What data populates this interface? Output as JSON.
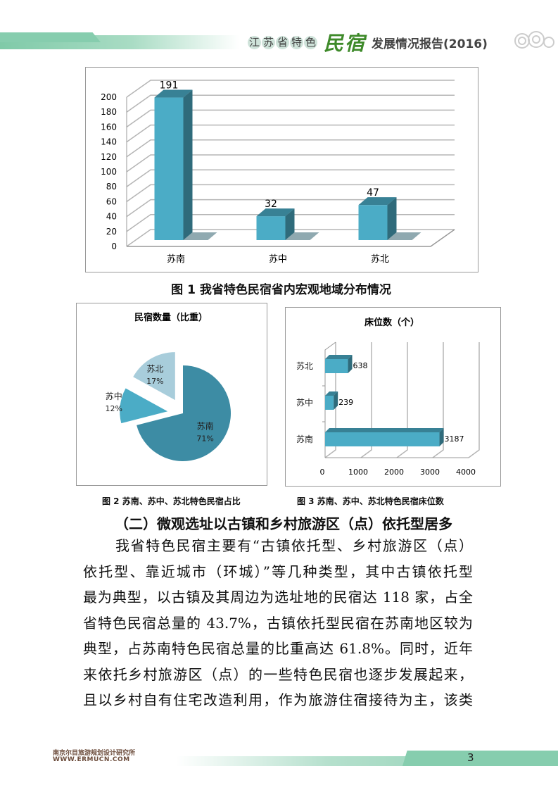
{
  "header": {
    "title_circled": [
      "江",
      "苏",
      "省",
      "特",
      "色"
    ],
    "title_script": "民宿",
    "title_rest": "发展情况报告(2016)"
  },
  "figure1": {
    "caption": "图 1 我省特色民宿省内宏观地域分布情况"
  },
  "figure2": {
    "caption": "图 2 苏南、苏中、苏北特色民宿占比"
  },
  "figure3": {
    "caption": "图 3 苏南、苏中、苏北特色民宿床位数"
  },
  "chart_data": [
    {
      "type": "bar",
      "style": "3d-column",
      "title": "",
      "categories": [
        "苏南",
        "苏中",
        "苏北"
      ],
      "values": [
        191,
        32,
        47
      ],
      "data_labels": [
        "191",
        "32",
        "47"
      ],
      "ylim": [
        0,
        200
      ],
      "yticks": [
        0,
        20,
        40,
        60,
        80,
        100,
        120,
        140,
        160,
        180,
        200
      ],
      "grid": true,
      "color": "#4bacc6"
    },
    {
      "type": "pie",
      "style": "exploded",
      "title": "民宿数量（比重）",
      "categories": [
        "苏南",
        "苏中",
        "苏北"
      ],
      "values": [
        71,
        12,
        17
      ],
      "data_labels": [
        "71%",
        "12%",
        "17%"
      ],
      "colors": [
        "#3d8ca4",
        "#4bacc6",
        "#a8cddb"
      ]
    },
    {
      "type": "bar",
      "style": "3d-horizontal",
      "title": "床位数（个）",
      "categories": [
        "苏南",
        "苏中",
        "苏北"
      ],
      "values": [
        3187,
        239,
        638
      ],
      "data_labels": [
        "3187",
        "239",
        "638"
      ],
      "xlim": [
        0,
        4000
      ],
      "xticks": [
        0,
        1000,
        2000,
        3000,
        4000
      ],
      "grid": true,
      "color": "#4bacc6"
    }
  ],
  "section": {
    "heading": "（二）微观选址以古镇和乡村旅游区（点）依托型居多",
    "lines": [
      "我省特色民宿主要有“古镇依托型、乡村旅游区（点）",
      "依托型、靠近城市（环城）”等几种类型，其中古镇依托型",
      "最为典型，以古镇及其周边为选址地的民宿达 118 家，占全",
      "省特色民宿总量的 43.7%，古镇依托型民宿在苏南地区较为",
      "典型，占苏南特色民宿总量的比重高达 61.8%。同时，近年",
      "来依托乡村旅游区（点）的一些特色民宿也逐步发展起来，",
      "且以乡村自有住宅改造利用，作为旅游住宿接待为主，该类"
    ]
  },
  "footer": {
    "org": "南京尔目旅游规划设计研究所",
    "url": "WWW.ERMUCN.COM",
    "page": "3"
  }
}
